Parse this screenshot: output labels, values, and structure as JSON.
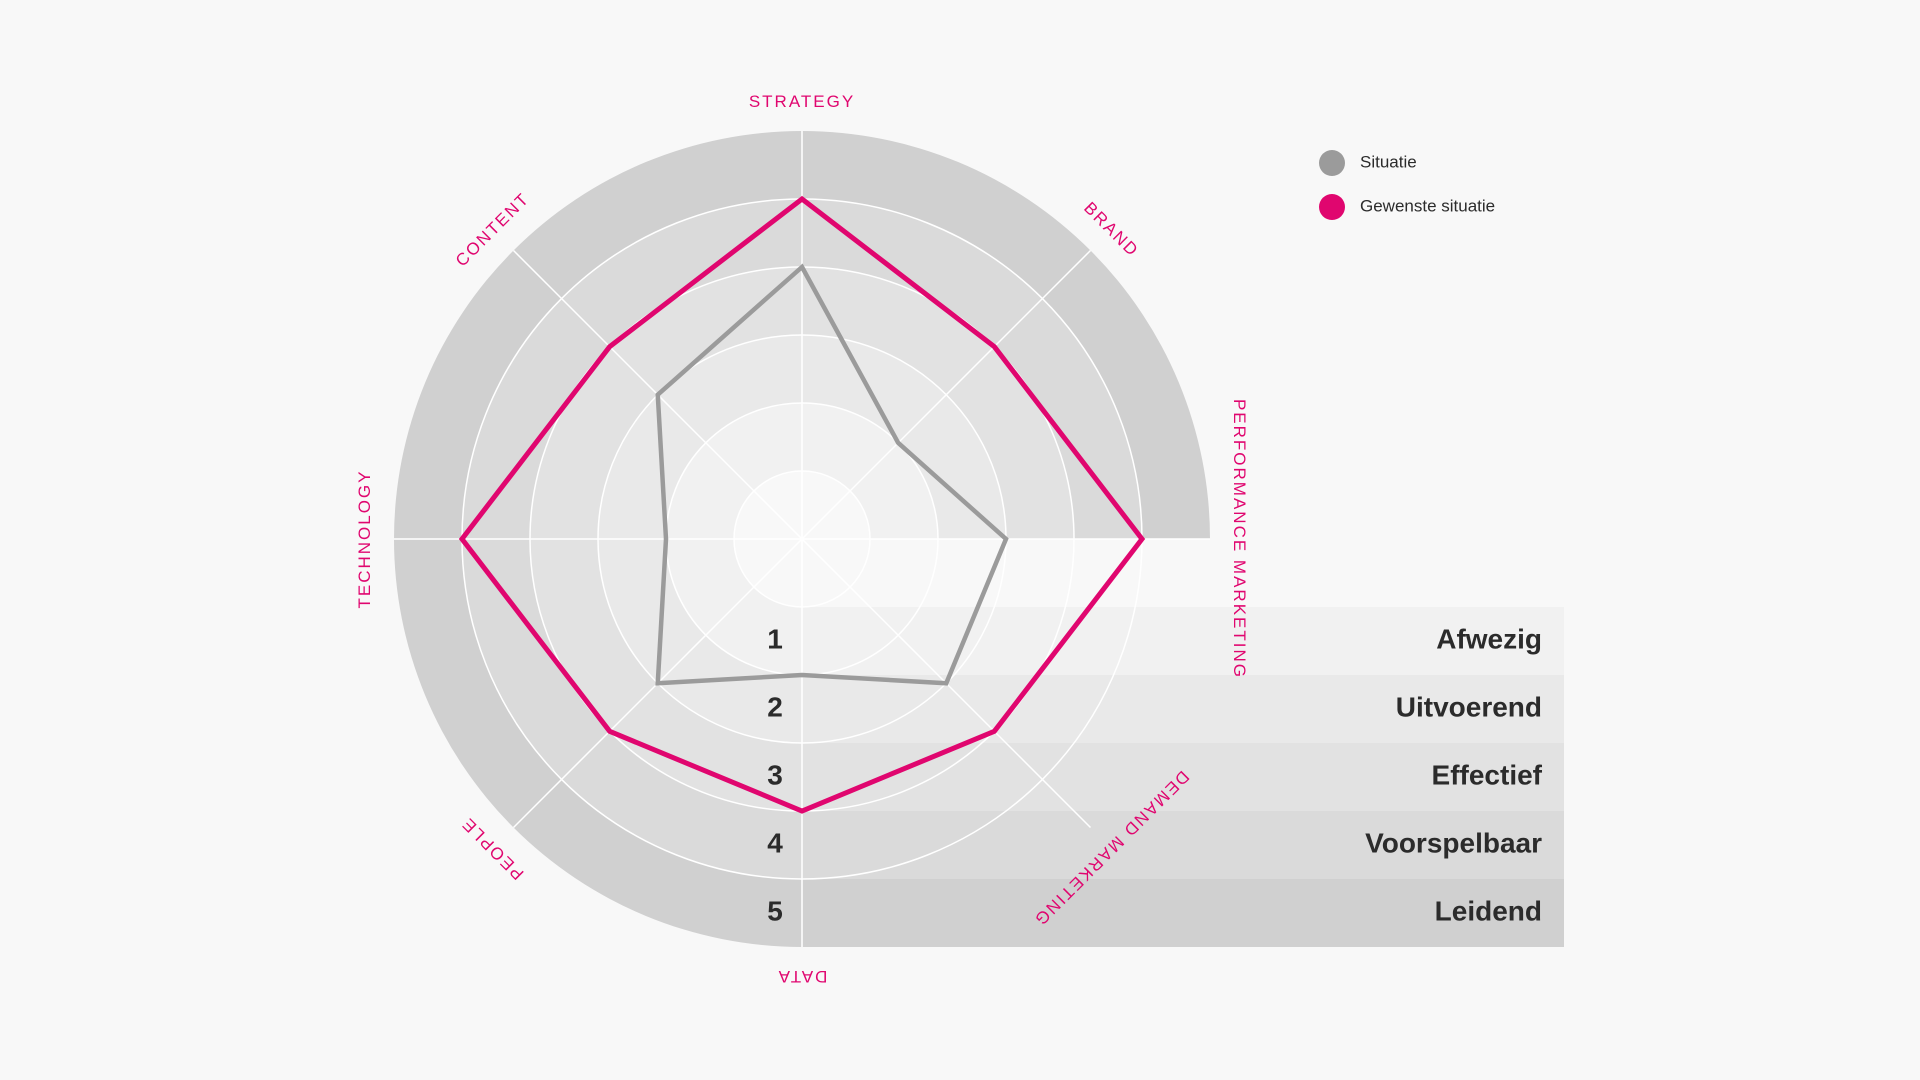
{
  "chart_data": {
    "type": "radar",
    "categories": [
      "STRATEGY",
      "BRAND",
      "PERFORMANCE MARKETING",
      "DEMAND MARKETING",
      "DATA",
      "PEOPLE",
      "TECHNOLOGY",
      "CONTENT"
    ],
    "series": [
      {
        "name": "Situatie",
        "color": "#9b9b9b",
        "values": [
          4,
          2,
          3,
          3,
          2,
          3,
          2,
          3
        ]
      },
      {
        "name": "Gewenste situatie",
        "color": "#e0066f",
        "values": [
          5,
          4,
          5,
          4,
          4,
          4,
          5,
          4
        ]
      }
    ],
    "rlim": [
      0,
      6
    ],
    "rticks": [
      1,
      2,
      3,
      4,
      5
    ],
    "level_names": [
      "Afwezig",
      "Uitvoerend",
      "Effectief",
      "Voorspelbaar",
      "Leidend"
    ],
    "label_color": "#e0066f",
    "legend": "top-right"
  }
}
